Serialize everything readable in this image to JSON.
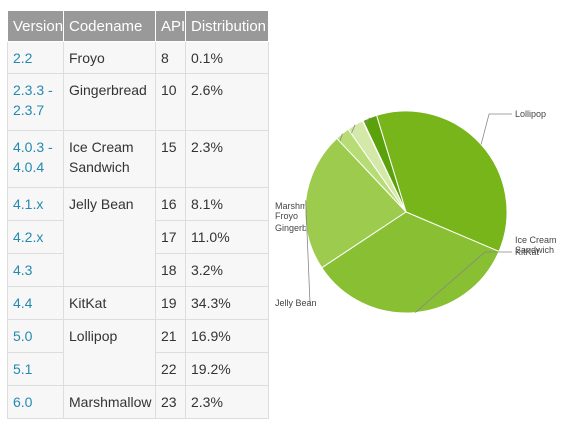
{
  "table": {
    "headers": [
      "Version",
      "Codename",
      "API",
      "Distribution"
    ],
    "rows": [
      {
        "version": "2.2",
        "codename": "Froyo",
        "api": "8",
        "distribution": "0.1%"
      },
      {
        "version": "2.3.3 -\n2.3.7",
        "codename": "Gingerbread",
        "api": "10",
        "distribution": "2.6%"
      },
      {
        "version": "4.0.3 -\n4.0.4",
        "codename": "Ice Cream\nSandwich",
        "api": "15",
        "distribution": "2.3%"
      },
      {
        "version": "4.1.x",
        "codename": "Jelly Bean",
        "api": "16",
        "distribution": "8.1%"
      },
      {
        "version": "4.2.x",
        "codename": "",
        "api": "17",
        "distribution": "11.0%"
      },
      {
        "version": "4.3",
        "codename": "",
        "api": "18",
        "distribution": "3.2%"
      },
      {
        "version": "4.4",
        "codename": "KitKat",
        "api": "19",
        "distribution": "34.3%"
      },
      {
        "version": "5.0",
        "codename": "Lollipop",
        "api": "21",
        "distribution": "16.9%"
      },
      {
        "version": "5.1",
        "codename": "",
        "api": "22",
        "distribution": "19.2%"
      },
      {
        "version": "6.0",
        "codename": "Marshmallow",
        "api": "23",
        "distribution": "2.3%"
      }
    ]
  },
  "chart_data": {
    "type": "pie",
    "title": "",
    "slices": [
      {
        "label": "Lollipop",
        "value": 36.1,
        "color": "#77b51a"
      },
      {
        "label": "Marshmallow",
        "value": 2.3,
        "color": "#5ba10c"
      },
      {
        "label": "Froyo",
        "value": 0.1,
        "color": "#e9f2d3"
      },
      {
        "label": "Gingerbread",
        "value": 2.6,
        "color": "#d4e8a8"
      },
      {
        "label": "Ice Cream Sandwich",
        "value": 2.3,
        "color": "#b8dc75"
      },
      {
        "label": "Jelly Bean",
        "value": 22.3,
        "color": "#9dcb4e"
      },
      {
        "label": "KitKat",
        "value": 34.3,
        "color": "#88bf33"
      }
    ],
    "legend_position": "labels-with-leader-lines"
  }
}
